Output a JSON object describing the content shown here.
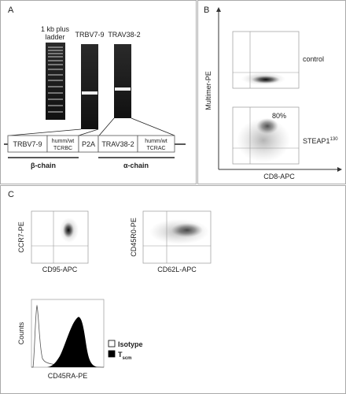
{
  "panel_a": {
    "label": "A",
    "gel_labels": {
      "ladder": [
        "1 kb plus",
        "ladder"
      ],
      "lane_1": "TRBV7-9",
      "lane_2": "TRAV38-2"
    },
    "construct": {
      "segments": [
        [
          "TRBV7-9"
        ],
        [
          "humm/wt",
          "TCRBC"
        ],
        [
          "P2A"
        ],
        [
          "TRAV38-2"
        ],
        [
          "humm/wt",
          "TCRAC"
        ]
      ],
      "beta": "β-chain",
      "alpha": "α-chain"
    }
  },
  "panel_b": {
    "label": "B",
    "y_axis": "Multimer-PE",
    "x_axis": "CD8-APC",
    "plots": [
      {
        "name": "control"
      },
      {
        "name": "STEAP1",
        "superscript": "130",
        "percent": "80%"
      }
    ]
  },
  "panel_c": {
    "label": "C",
    "plots": [
      {
        "y_axis": "CCR7-PE",
        "x_axis": "CD95-APC"
      },
      {
        "y_axis": "CD45R0-PE",
        "x_axis": "CD62L-APC"
      }
    ],
    "histogram": {
      "y_axis": "Counts",
      "x_axis": "CD45RA-PE",
      "legend": [
        {
          "name": "Isotype"
        },
        {
          "name": "T",
          "subscript": "scm"
        }
      ]
    }
  }
}
